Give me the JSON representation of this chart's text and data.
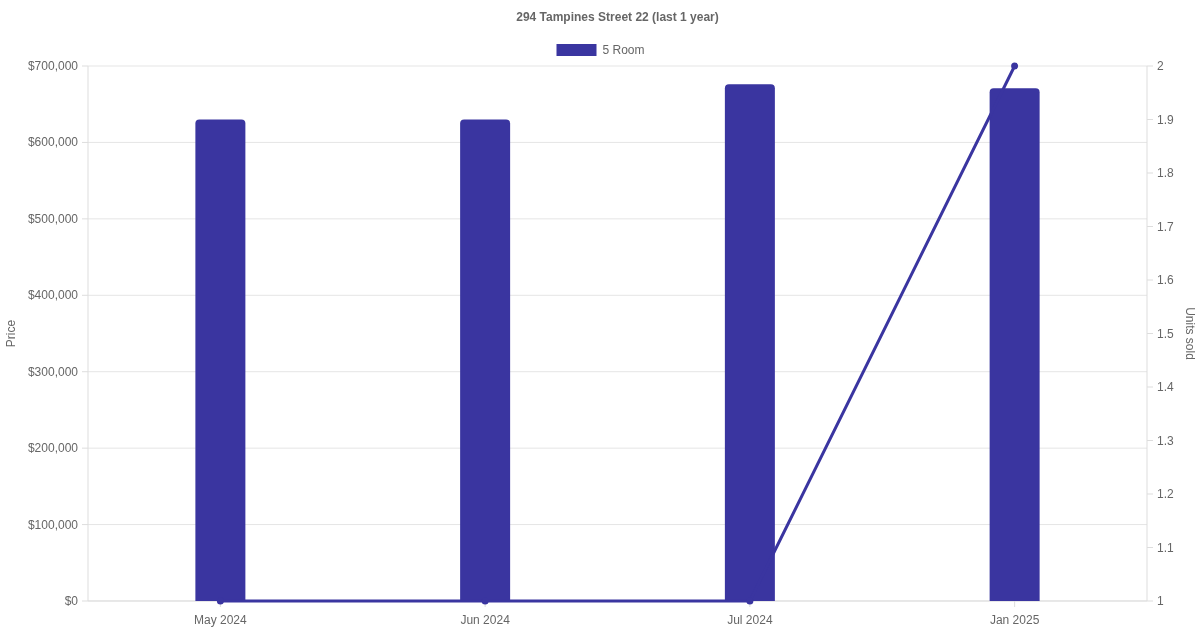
{
  "chart_data": {
    "type": "bar",
    "title": "294 Tampines Street 22 (last 1 year)",
    "categories": [
      "May 2024",
      "Jun 2024",
      "Jul 2024",
      "Jan 2025"
    ],
    "ylabel": "Price",
    "y2label": "Units sold",
    "series": [
      {
        "name": "5 Room",
        "color": "#3a35a0",
        "values": [
          630000,
          630000,
          676000,
          671000
        ]
      },
      {
        "type": "line",
        "axis": "y2",
        "color": "#3a35a0",
        "values": [
          1,
          1,
          1,
          2
        ]
      }
    ],
    "ylim": [
      0,
      700000
    ],
    "yticks": [
      {
        "value": 0,
        "label": "$0"
      },
      {
        "value": 100000,
        "label": "$100,000"
      },
      {
        "value": 200000,
        "label": "$200,000"
      },
      {
        "value": 300000,
        "label": "$300,000"
      },
      {
        "value": 400000,
        "label": "$400,000"
      },
      {
        "value": 500000,
        "label": "$500,000"
      },
      {
        "value": 600000,
        "label": "$600,000"
      },
      {
        "value": 700000,
        "label": "$700,000"
      }
    ],
    "y2lim": [
      1,
      2
    ],
    "y2ticks": [
      1,
      1.1,
      1.2,
      1.3,
      1.4,
      1.5,
      1.6,
      1.7,
      1.8,
      1.9,
      2
    ],
    "grid": "y",
    "legend": "top",
    "marker": "circle"
  }
}
